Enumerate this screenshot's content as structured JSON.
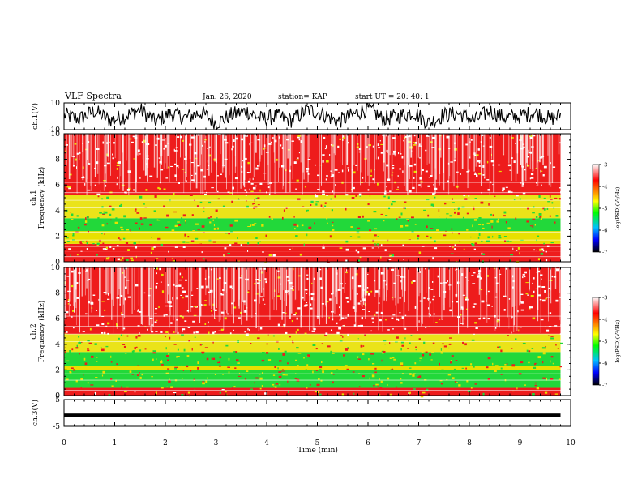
{
  "header": {
    "title": "VLF Spectra",
    "date": "Jan. 26, 2020",
    "station": "station= KAP",
    "start": "start  UT  =   20: 40: 1"
  },
  "colors": {
    "red": "#ee1c1c",
    "yellow": "#e8e000",
    "green": "#22d83a",
    "white_speck": "#ffffff"
  },
  "colorbar": {
    "label": "log(PSD)(V²/Hz)",
    "ticks": [
      -3,
      -4,
      -5,
      -6,
      -7
    ],
    "range": [
      -7,
      -3
    ],
    "stops": [
      "#ffffff",
      "#ff0000",
      "#ffff00",
      "#00ff00",
      "#00c0ff",
      "#0000ff",
      "#000000"
    ]
  },
  "chart_data": [
    {
      "type": "line",
      "name": "ch1-waveform",
      "ylabel": "ch.1(V)",
      "ylim": [
        -10,
        10
      ],
      "yticks": [
        10,
        -10
      ],
      "xlim": [
        0,
        10
      ],
      "data_end_min": 9.8,
      "x": [
        0,
        0.3,
        0.6,
        0.9,
        1.2,
        1.5,
        1.8,
        2.1,
        2.4,
        2.7,
        3.0,
        3.3,
        3.6,
        3.9,
        4.2,
        4.5,
        4.8,
        5.1,
        5.4,
        5.7,
        6.0,
        6.3,
        6.6,
        6.9,
        7.2,
        7.5,
        7.8,
        8.1,
        8.4,
        8.7,
        9.0,
        9.3,
        9.6,
        9.8
      ],
      "y": [
        1,
        -2,
        4,
        -3,
        0,
        5,
        -4,
        2,
        -1,
        3,
        -5,
        1,
        4,
        -2,
        0,
        -3,
        5,
        2,
        -4,
        1,
        6,
        -2,
        0,
        3,
        -5,
        1,
        2,
        -3,
        4,
        -1,
        0,
        3,
        -2,
        1
      ],
      "amplitude": 6
    },
    {
      "type": "heatmap",
      "name": "ch1-spectrogram",
      "ylabel": "ch.1\nFrequency  (kHz)",
      "ylim": [
        0,
        10
      ],
      "yticks": [
        0,
        2,
        4,
        6,
        8,
        10
      ],
      "xlim": [
        0,
        10
      ],
      "data_end_min": 9.8,
      "bands": [
        {
          "from_khz": 0.0,
          "to_khz": 0.8,
          "level": "mixed"
        },
        {
          "from_khz": 0.8,
          "to_khz": 1.4,
          "level": "red"
        },
        {
          "from_khz": 1.4,
          "to_khz": 2.4,
          "level": "yellow"
        },
        {
          "from_khz": 2.4,
          "to_khz": 3.4,
          "level": "green"
        },
        {
          "from_khz": 3.4,
          "to_khz": 5.2,
          "level": "yellow-red"
        },
        {
          "from_khz": 5.2,
          "to_khz": 10.0,
          "level": "red"
        }
      ]
    },
    {
      "type": "heatmap",
      "name": "ch2-spectrogram",
      "ylabel": "ch.2\nFrequency  (kHz)",
      "ylim": [
        0,
        10
      ],
      "yticks": [
        0,
        2,
        4,
        6,
        8,
        10
      ],
      "xlim": [
        0,
        10
      ],
      "data_end_min": 9.8,
      "bands": [
        {
          "from_khz": 0.0,
          "to_khz": 0.6,
          "level": "mixed"
        },
        {
          "from_khz": 0.6,
          "to_khz": 2.0,
          "level": "green"
        },
        {
          "from_khz": 2.0,
          "to_khz": 2.3,
          "level": "yellow"
        },
        {
          "from_khz": 2.3,
          "to_khz": 3.4,
          "level": "green"
        },
        {
          "from_khz": 3.4,
          "to_khz": 4.8,
          "level": "yellow-red"
        },
        {
          "from_khz": 4.8,
          "to_khz": 10.0,
          "level": "red"
        }
      ]
    },
    {
      "type": "line",
      "name": "ch3-waveform",
      "ylabel": "ch.3(V)",
      "ylim": [
        -5,
        5
      ],
      "yticks": [
        5,
        -5
      ],
      "xlim": [
        0,
        10
      ],
      "data_end_min": 9.8,
      "x": [
        0,
        9.8
      ],
      "y": [
        0,
        0
      ],
      "thickness_v": 1.3
    }
  ],
  "xaxis": {
    "label": "Time  (min)",
    "ticks": [
      0,
      1,
      2,
      3,
      4,
      5,
      6,
      7,
      8,
      9,
      10
    ]
  }
}
